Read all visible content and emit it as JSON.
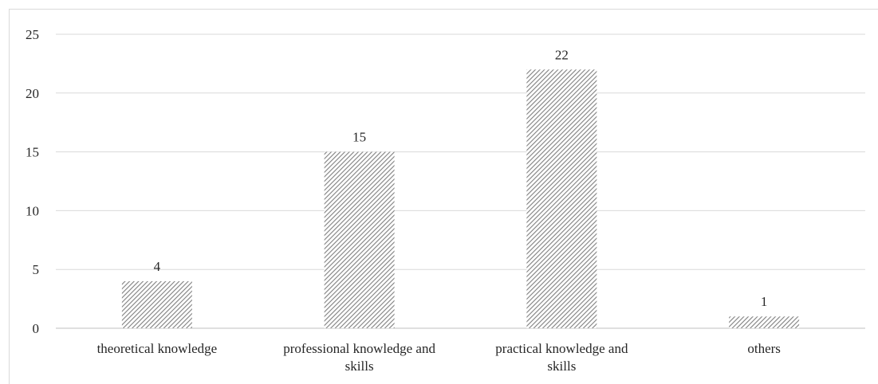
{
  "chart_data": {
    "type": "bar",
    "categories": [
      [
        "theoretical knowledge"
      ],
      [
        "professional knowledge and",
        "skills"
      ],
      [
        "practical knowledge and",
        "skills"
      ],
      [
        "others"
      ]
    ],
    "values": [
      4,
      15,
      22,
      1
    ],
    "data_labels": [
      "4",
      "15",
      "22",
      "1"
    ],
    "ylim": [
      0,
      25
    ],
    "yticks": [
      0,
      5,
      10,
      15,
      20,
      25
    ],
    "ytick_labels": [
      "0",
      "5",
      "10",
      "15",
      "20",
      "25"
    ],
    "grid": true,
    "legend": "none",
    "bar_fill": "diagonal-hatch",
    "colors": {
      "bar_stripe": "#7f7f7f",
      "grid": "#d9d9d9",
      "axis": "#bfbfbf",
      "text": "#262626"
    }
  }
}
